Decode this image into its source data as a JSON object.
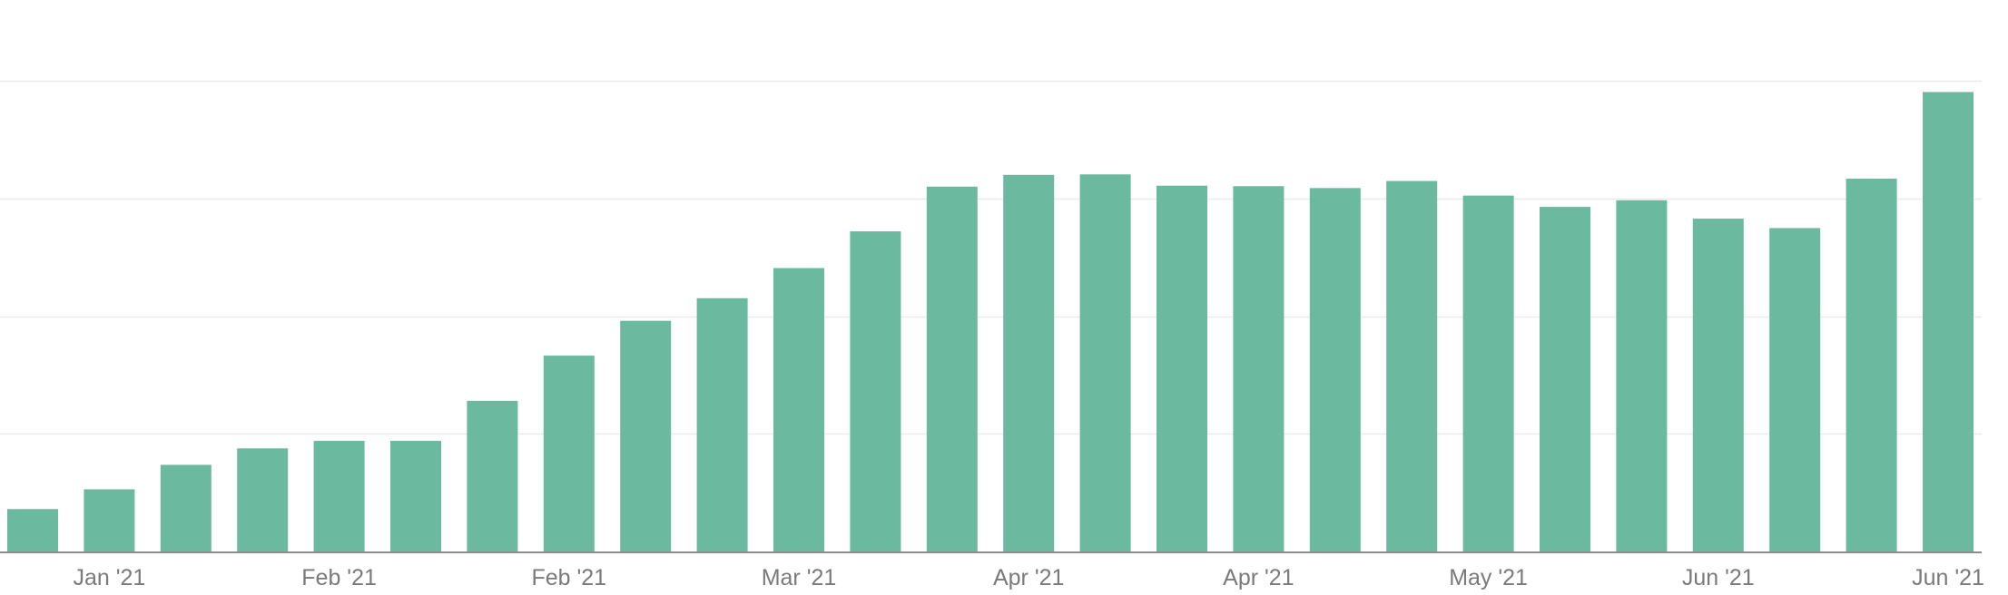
{
  "colors": {
    "bar": "#6bb99f",
    "grid": "#ebebeb",
    "axis": "#8c8c8c",
    "tick_text": "#7a7a7a",
    "background": "#ffffff"
  },
  "chart_data": {
    "type": "bar",
    "title": "",
    "xlabel": "",
    "ylabel": "",
    "grid": true,
    "y_tick_labels_shown": false,
    "gridline_values": [
      25,
      50,
      75,
      100
    ],
    "ylim": [
      0,
      100
    ],
    "x_tick_labels": [
      {
        "label": "Jan '21",
        "bar_index": 1
      },
      {
        "label": "Feb '21",
        "bar_index": 4
      },
      {
        "label": "Feb '21",
        "bar_index": 7
      },
      {
        "label": "Mar '21",
        "bar_index": 10
      },
      {
        "label": "Apr '21",
        "bar_index": 13
      },
      {
        "label": "Apr '21",
        "bar_index": 16
      },
      {
        "label": "May '21",
        "bar_index": 19
      },
      {
        "label": "Jun '21",
        "bar_index": 22
      },
      {
        "label": "Jun '21",
        "bar_index": 25
      }
    ],
    "values": [
      9,
      13.2,
      18.4,
      21.9,
      23.5,
      23.5,
      32,
      41.6,
      49,
      53.8,
      60.2,
      68,
      77.5,
      80,
      80.1,
      77.7,
      77.6,
      77.2,
      78.7,
      75.6,
      73.2,
      74.6,
      70.7,
      68.7,
      79.2,
      97.6
    ]
  }
}
